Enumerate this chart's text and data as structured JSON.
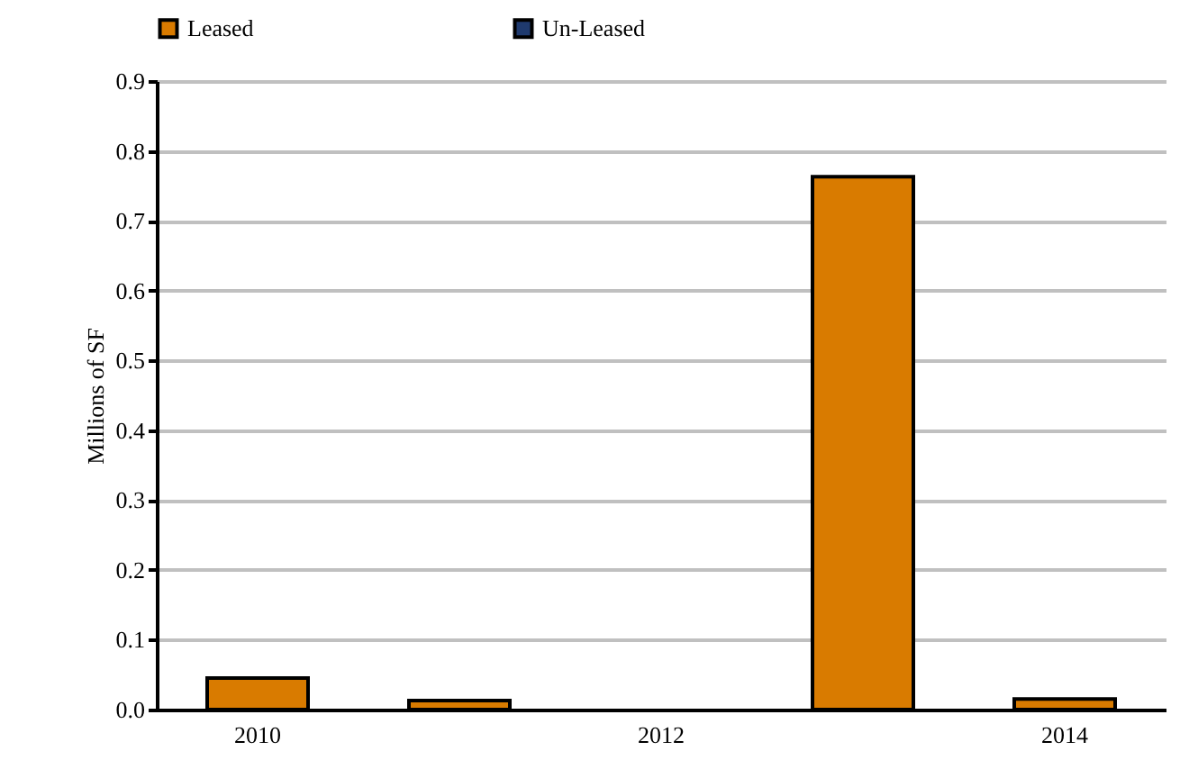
{
  "chart_data": {
    "type": "bar",
    "ylabel": "Millions of SF",
    "categories": [
      "2010",
      null,
      "2012",
      null,
      "2014"
    ],
    "series": [
      {
        "name": "Leased",
        "color": "#d97b00",
        "values": [
          0.045,
          0.013,
          null,
          0.763,
          0.015
        ]
      },
      {
        "name": "Un-Leased",
        "color": "#1f3a6e",
        "values": [
          null,
          null,
          null,
          null,
          null
        ]
      }
    ],
    "ylim": [
      0,
      0.9
    ],
    "yticks": [
      {
        "value": 0,
        "label": "0.0"
      },
      0.1,
      0.2,
      0.3,
      0.4,
      0.5,
      0.6,
      0.7,
      0.8,
      0.9
    ],
    "grid": "y",
    "legend": "top left"
  }
}
